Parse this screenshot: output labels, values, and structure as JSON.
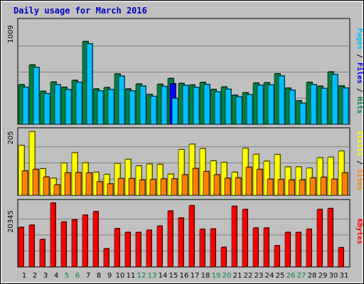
{
  "chart_data": {
    "type": "bar",
    "title": "Daily usage for March 2016",
    "days": [
      "1",
      "2",
      "3",
      "4",
      "5",
      "6",
      "7",
      "8",
      "9",
      "10",
      "11",
      "12",
      "13",
      "14",
      "15",
      "16",
      "17",
      "18",
      "19",
      "20",
      "21",
      "22",
      "23",
      "24",
      "25",
      "26",
      "27",
      "28",
      "29",
      "30",
      "31"
    ],
    "weekend_days": [
      "5",
      "6",
      "12",
      "13",
      "19",
      "20",
      "26",
      "27"
    ],
    "colors": {
      "hits": "#008040",
      "files": "#0000ff",
      "pages": "#00c0ff",
      "visits": "#ffff00",
      "sites": "#ff8000",
      "kbytes": "#ff0000",
      "weekend_tick": "#008040",
      "title": "#0000c0",
      "panel_bg": "#c0c0c0"
    },
    "panels": [
      {
        "id": "top",
        "ymax_label": "1009",
        "ymax": 1009,
        "axis_labels": [
          {
            "text": "Pages",
            "color": "#00c0ff"
          },
          {
            "text": " / ",
            "color": "#000000"
          },
          {
            "text": "Files",
            "color": "#0000ff"
          },
          {
            "text": " / ",
            "color": "#000000"
          },
          {
            "text": "Hits",
            "color": "#008040"
          }
        ],
        "series": [
          {
            "key": "hits",
            "values": [
              382,
              573,
              318,
              408,
              357,
              424,
              799,
              341,
              354,
              486,
              341,
              389,
              288,
              386,
              442,
              394,
              379,
              404,
              336,
              360,
              280,
              304,
              398,
              401,
              488,
              349,
              226,
              405,
              368,
              506,
              370
            ]
          },
          {
            "key": "files",
            "values": [
              0,
              0,
              0,
              0,
              0,
              0,
              0,
              0,
              0,
              0,
              0,
              0,
              0,
              0,
              391,
              0,
              0,
              0,
              0,
              0,
              0,
              0,
              0,
              0,
              0,
              0,
              0,
              0,
              0,
              0,
              0
            ]
          },
          {
            "key": "pages",
            "values": [
              357,
              549,
              296,
              382,
              335,
              405,
              777,
              322,
              335,
              465,
              322,
              369,
              269,
              365,
              250,
              375,
              356,
              384,
              313,
              338,
              264,
              286,
              376,
              381,
              467,
              329,
              203,
              383,
              346,
              480,
              350
            ]
          }
        ]
      },
      {
        "id": "middle",
        "ymax_label": "205",
        "ymax": 205,
        "axis_labels": [
          {
            "text": "Visits",
            "color": "#ffff00"
          },
          {
            "text": " / ",
            "color": "#000000"
          },
          {
            "text": "Sites",
            "color": "#ff8000"
          }
        ],
        "series": [
          {
            "key": "visits",
            "values": [
              158,
              202,
              84,
              54,
              102,
              135,
              103,
              73,
              66,
              101,
              114,
              93,
              99,
              98,
              67,
              145,
              162,
              148,
              109,
              104,
              73,
              149,
              130,
              108,
              129,
              90,
              90,
              86,
              119,
              121,
              140
            ]
          },
          {
            "key": "sites",
            "values": [
              77,
              82,
              58,
              33,
              71,
              72,
              71,
              43,
              36,
              53,
              53,
              48,
              50,
              52,
              52,
              65,
              85,
              75,
              65,
              54,
              55,
              89,
              82,
              51,
              50,
              48,
              48,
              55,
              57,
              51,
              71
            ]
          }
        ]
      },
      {
        "id": "bottom",
        "ymax_label": "20345",
        "ymax": 20345,
        "axis_labels": [
          {
            "text": "KBytes",
            "color": "#ff0000"
          }
        ],
        "series": [
          {
            "key": "kbytes",
            "values": [
              12600,
              13300,
              8750,
              20345,
              14300,
              15000,
              16500,
              17600,
              5800,
              12200,
              11000,
              11000,
              11700,
              13000,
              17800,
              15600,
              19500,
              12000,
              12100,
              6250,
              19300,
              18300,
              12400,
              12400,
              6750,
              11000,
              11000,
              12000,
              18300,
              18600,
              6150
            ]
          }
        ]
      }
    ]
  }
}
